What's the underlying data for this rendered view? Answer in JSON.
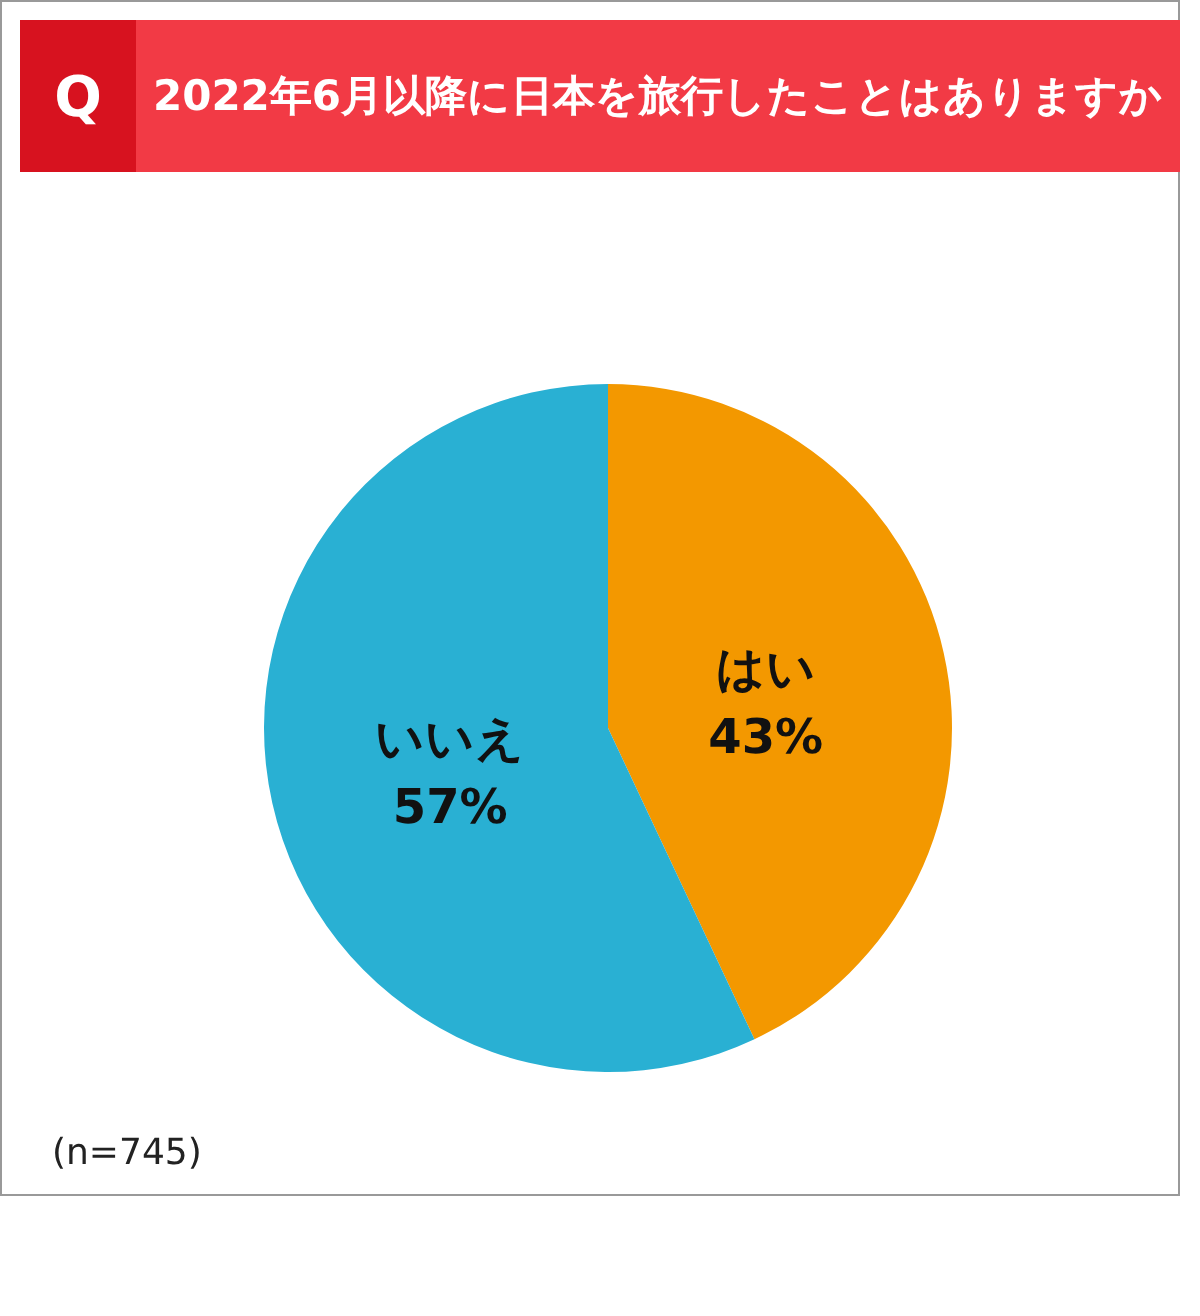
{
  "chart_data": {
    "type": "pie",
    "title": "2022年6月以降に日本を旅行したことはありますか",
    "categories": [
      "はい",
      "いいえ"
    ],
    "values": [
      43,
      57
    ],
    "colors": [
      "#f39800",
      "#29b0d3"
    ],
    "value_labels": [
      "43%",
      "57%"
    ],
    "annotations": [
      "Q",
      "(n=745)"
    ]
  }
}
